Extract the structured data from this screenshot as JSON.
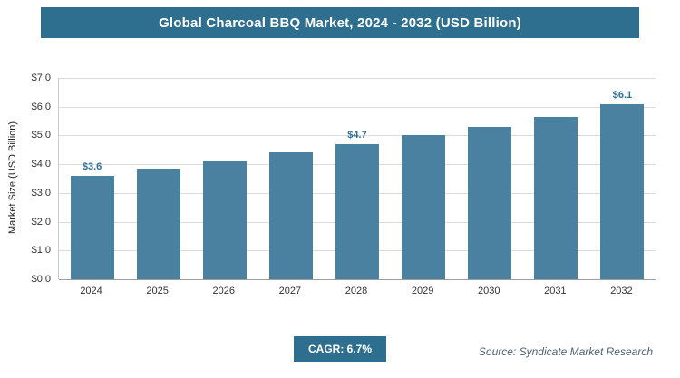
{
  "chart_data": {
    "type": "bar",
    "title": "Global Charcoal BBQ Market, 2024 - 2032 (USD Billion)",
    "categories": [
      "2024",
      "2025",
      "2026",
      "2027",
      "2028",
      "2029",
      "2030",
      "2031",
      "2032"
    ],
    "values": [
      3.6,
      3.85,
      4.1,
      4.4,
      4.7,
      5.0,
      5.3,
      5.65,
      6.1
    ],
    "value_labels": [
      "$3.6",
      null,
      null,
      null,
      "$4.7",
      null,
      null,
      null,
      "$6.1"
    ],
    "xlabel": "",
    "ylabel": "Market Size (USD Billion)",
    "ylim": [
      0,
      7
    ],
    "ytick_step": 1,
    "ytick_labels": [
      "$0.0",
      "$1.0",
      "$2.0",
      "$3.0",
      "$4.0",
      "$5.0",
      "$6.0",
      "$7.0"
    ],
    "grid": true,
    "legend": "none",
    "bar_color": "#4a81a0",
    "label_color": "#2e6f8f"
  },
  "header": {
    "bg_color": "#2e6f8f",
    "text_color": "#ffffff"
  },
  "footer": {
    "cagr_label": "CAGR: 6.7%",
    "source": "Source: Syndicate Market Research"
  }
}
